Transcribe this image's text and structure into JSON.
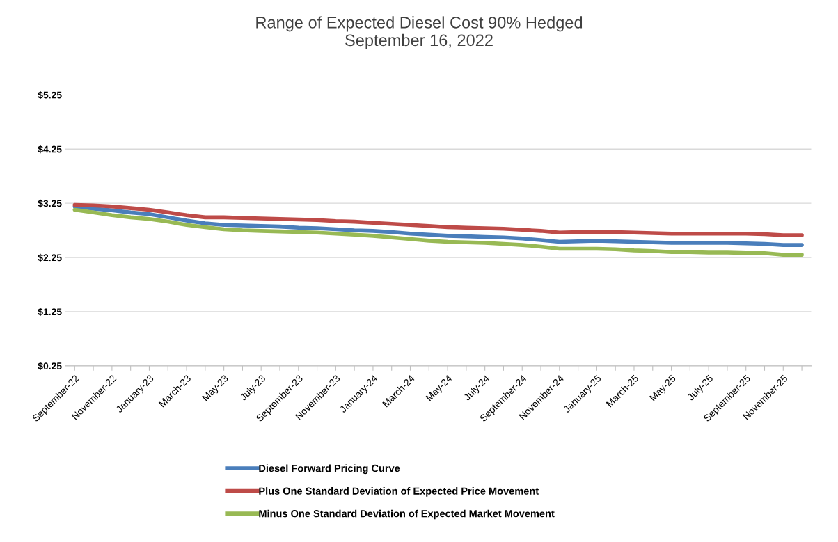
{
  "chart_data": {
    "type": "line",
    "title": "Range of Expected Diesel Cost 90% Hedged\nSeptember 16, 2022",
    "categories": [
      "September-22",
      null,
      "November-22",
      null,
      "January-23",
      null,
      "March-23",
      null,
      "May-23",
      null,
      "July-23",
      null,
      "September-23",
      null,
      "November-23",
      null,
      "January-24",
      null,
      "March-24",
      null,
      "May-24",
      null,
      "July-24",
      null,
      "September-24",
      null,
      "November-24",
      null,
      "January-25",
      null,
      "March-25",
      null,
      "May-25",
      null,
      "July-25",
      null,
      "September-25",
      null,
      "November-25",
      null
    ],
    "series": [
      {
        "name": "Diesel Forward Pricing Curve",
        "color": "#4a7ebb",
        "values": [
          3.19,
          3.15,
          3.12,
          3.08,
          3.05,
          2.99,
          2.93,
          2.88,
          2.85,
          2.84,
          2.83,
          2.82,
          2.8,
          2.79,
          2.77,
          2.75,
          2.74,
          2.72,
          2.69,
          2.67,
          2.65,
          2.64,
          2.63,
          2.62,
          2.6,
          2.57,
          2.54,
          2.55,
          2.56,
          2.55,
          2.54,
          2.53,
          2.52,
          2.52,
          2.52,
          2.52,
          2.51,
          2.5,
          2.48,
          2.48
        ]
      },
      {
        "name": "Plus One Standard Deviation of Expected Price Movement",
        "color": "#be4b48",
        "values": [
          3.22,
          3.21,
          3.19,
          3.16,
          3.13,
          3.08,
          3.03,
          2.99,
          2.99,
          2.98,
          2.97,
          2.96,
          2.95,
          2.94,
          2.92,
          2.91,
          2.89,
          2.87,
          2.85,
          2.83,
          2.81,
          2.8,
          2.79,
          2.78,
          2.76,
          2.74,
          2.71,
          2.72,
          2.72,
          2.72,
          2.71,
          2.7,
          2.69,
          2.69,
          2.69,
          2.69,
          2.69,
          2.68,
          2.66,
          2.66
        ]
      },
      {
        "name": "Minus One Standard Deviation of Expected Market Movement",
        "color": "#98b954",
        "values": [
          3.13,
          3.08,
          3.03,
          2.99,
          2.96,
          2.91,
          2.85,
          2.81,
          2.77,
          2.75,
          2.74,
          2.73,
          2.72,
          2.71,
          2.69,
          2.67,
          2.65,
          2.62,
          2.59,
          2.56,
          2.54,
          2.53,
          2.52,
          2.5,
          2.48,
          2.45,
          2.41,
          2.41,
          2.41,
          2.4,
          2.38,
          2.37,
          2.35,
          2.35,
          2.34,
          2.34,
          2.33,
          2.33,
          2.3,
          2.3
        ]
      }
    ],
    "ylim": [
      0.25,
      5.25
    ],
    "yticks": [
      {
        "value": 0.25,
        "label": "$0.25"
      },
      {
        "value": 1.25,
        "label": "$1.25"
      },
      {
        "value": 2.25,
        "label": "$2.25"
      },
      {
        "value": 3.25,
        "label": "$3.25"
      },
      {
        "value": 4.25,
        "label": "$4.25"
      },
      {
        "value": 5.25,
        "label": "$5.25"
      }
    ],
    "grid": "y",
    "legend": "bottom",
    "marker": "none",
    "line_style": "solid"
  }
}
